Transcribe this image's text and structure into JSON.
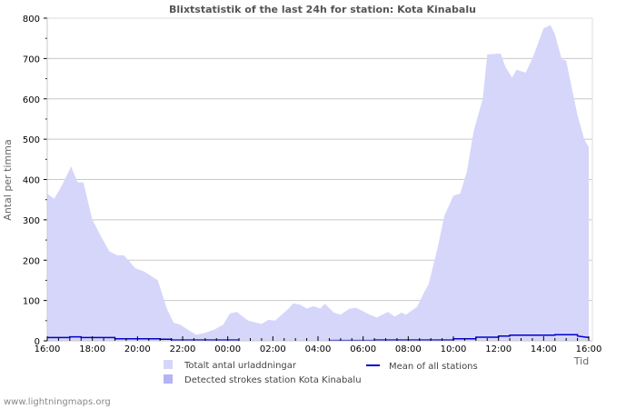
{
  "colors": {
    "total_fill": "#d6d6fb",
    "station_fill": "#b3b3f5",
    "mean_line": "#0000cc",
    "grid": "#c8c8c8",
    "title": "#555555"
  },
  "footer": {
    "text": "www.lightningmaps.org"
  },
  "chart_data": {
    "type": "area",
    "title": "Blixtstatistik of the last 24h for station: Kota Kinabalu",
    "xlabel": "Tid",
    "ylabel": "Antal per timma",
    "ylim": [
      0,
      800
    ],
    "y_ticks": [
      0,
      100,
      200,
      300,
      400,
      500,
      600,
      700,
      800
    ],
    "x_tick_labels": [
      "16:00",
      "18:00",
      "20:00",
      "22:00",
      "00:00",
      "02:00",
      "04:00",
      "06:00",
      "08:00",
      "10:00",
      "12:00",
      "14:00",
      "16:00"
    ],
    "grid": true,
    "legend_position": "bottom",
    "legend": [
      {
        "label": "Totalt antal urladdningar",
        "type": "area-light"
      },
      {
        "label": "Detected strokes station Kota Kinabalu",
        "type": "area-dark"
      },
      {
        "label": "Mean of all stations",
        "type": "line"
      }
    ],
    "x_hours": [
      0,
      0.3,
      0.6,
      1.0,
      1.05,
      1.35,
      1.6,
      2.0,
      2.35,
      2.75,
      3.1,
      3.4,
      3.9,
      4.3,
      4.9,
      5.3,
      5.6,
      5.9,
      6.3,
      6.6,
      7.0,
      7.4,
      7.8,
      8.1,
      8.4,
      8.9,
      9.5,
      9.8,
      10.1,
      10.7,
      10.9,
      11.2,
      11.5,
      11.8,
      12.1,
      12.3,
      12.7,
      13.0,
      13.4,
      13.7,
      14.3,
      14.6,
      15.1,
      15.4,
      15.7,
      15.9,
      16.4,
      16.7,
      16.9,
      17.3,
      17.6,
      18.0,
      18.3,
      18.6,
      18.9,
      19.3,
      19.5,
      19.9,
      20.1,
      20.3,
      20.6,
      20.8,
      21.2,
      21.5,
      21.7,
      22.0,
      22.3,
      22.5,
      22.8,
      23.0,
      23.2,
      23.5,
      23.8,
      24.0
    ],
    "series": [
      {
        "name": "Totalt antal urladdningar",
        "values": [
          365,
          352,
          380,
          425,
          433,
          393,
          393,
          300,
          262,
          222,
          212,
          212,
          180,
          172,
          150,
          80,
          45,
          40,
          25,
          15,
          20,
          28,
          40,
          68,
          72,
          50,
          42,
          52,
          50,
          80,
          93,
          90,
          80,
          86,
          80,
          92,
          70,
          65,
          80,
          82,
          65,
          58,
          72,
          60,
          70,
          65,
          85,
          120,
          140,
          230,
          310,
          360,
          365,
          420,
          520,
          600,
          710,
          712,
          712,
          680,
          653,
          672,
          665,
          700,
          730,
          775,
          783,
          760,
          698,
          695,
          640,
          560,
          500,
          480
        ]
      },
      {
        "name": "Detected strokes station Kota Kinabalu",
        "values": []
      },
      {
        "name": "Mean of all stations",
        "x_hours": [
          0,
          1,
          1,
          1.5,
          1.5,
          3,
          3,
          5,
          5,
          5.5,
          5.5,
          8.5,
          12.5,
          12.5,
          14.5,
          14.5,
          18,
          18,
          19,
          19,
          20,
          20,
          20.5,
          20.5,
          22.5,
          22.5,
          23.5,
          23.5,
          24
        ],
        "values": [
          8,
          8,
          10,
          10,
          8,
          8,
          5,
          5,
          4,
          4,
          2,
          2,
          null,
          1,
          1,
          2,
          2,
          5,
          5,
          9,
          9,
          12,
          12,
          14,
          14,
          15,
          15,
          12,
          8
        ]
      }
    ]
  }
}
